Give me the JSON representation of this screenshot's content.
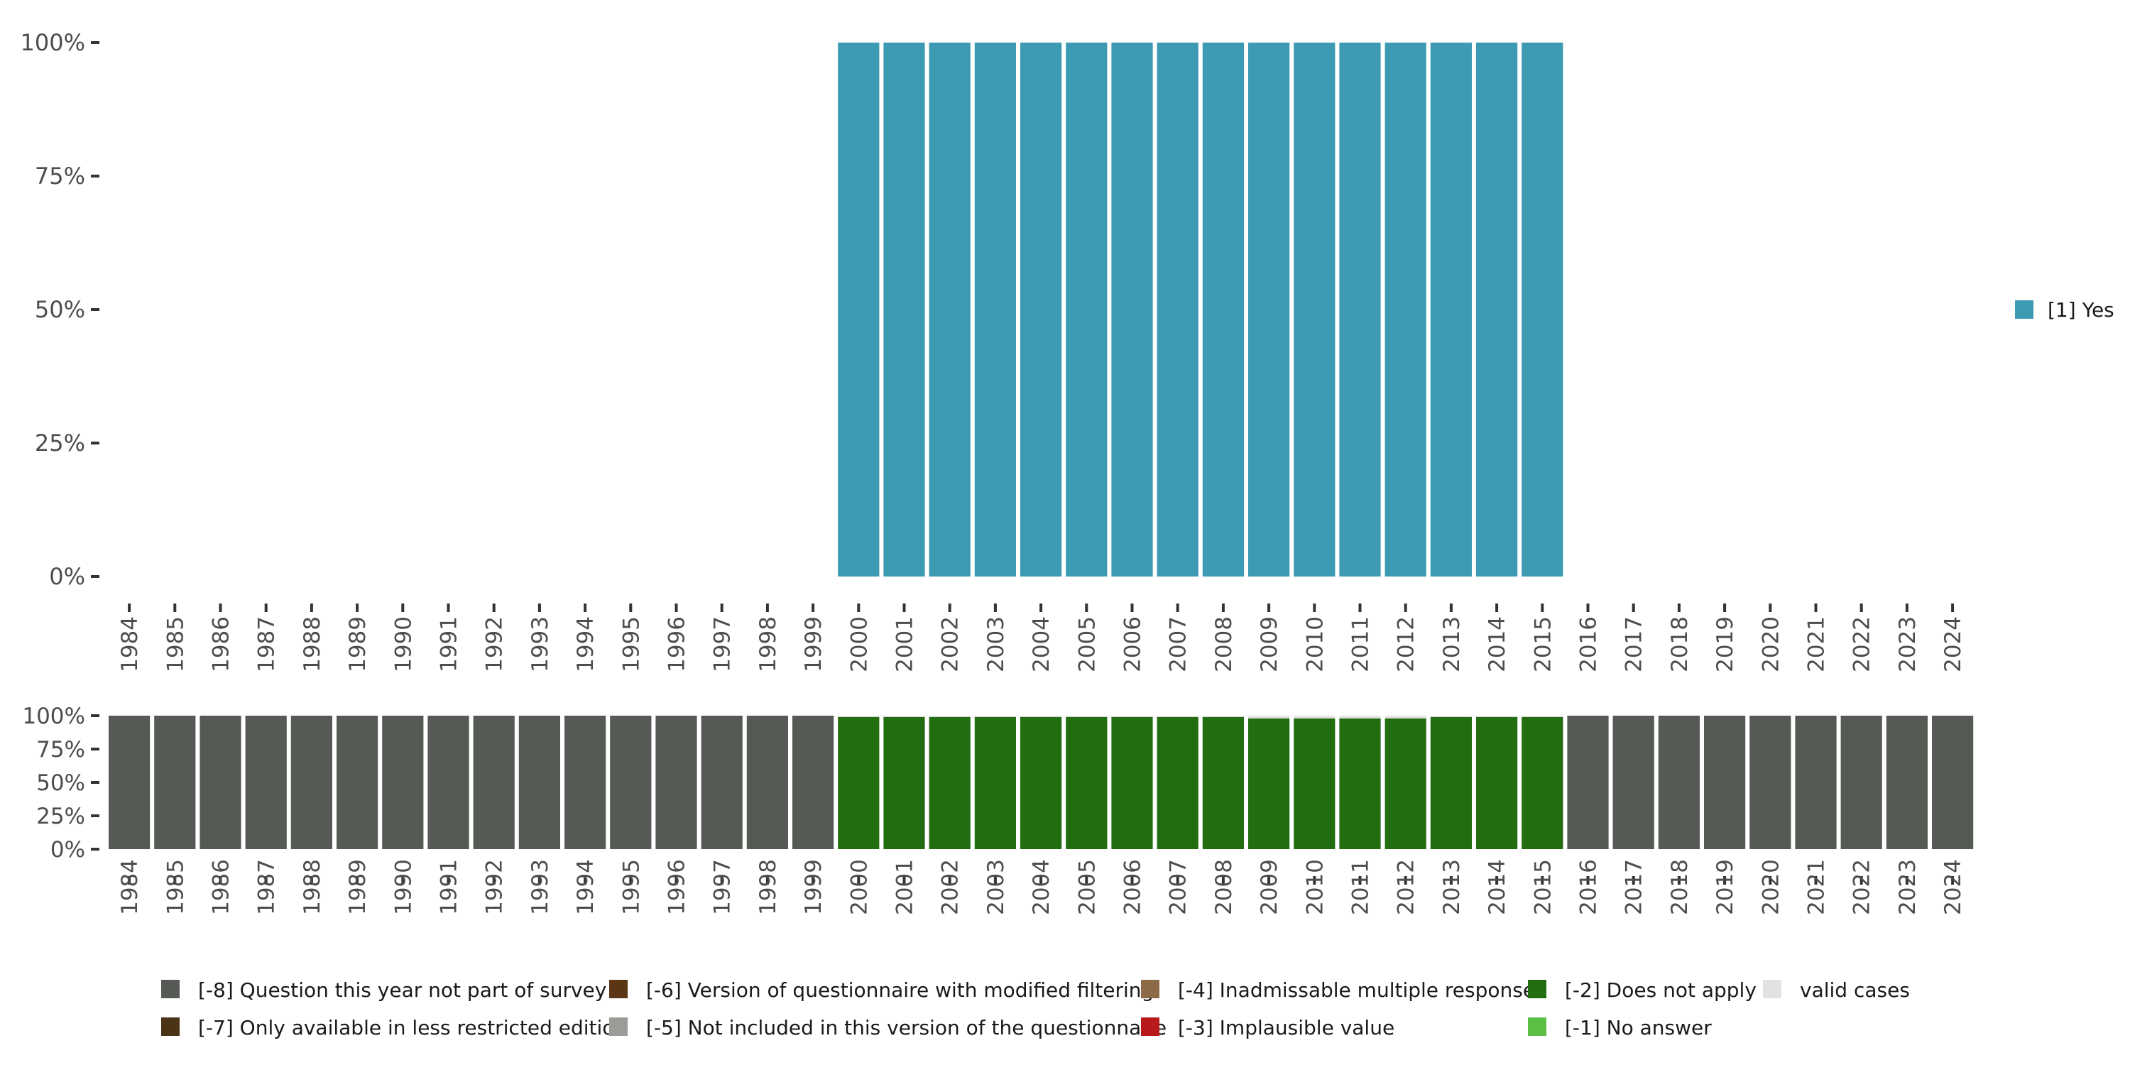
{
  "chart_data": [
    {
      "type": "bar",
      "stacked": true,
      "categories": [
        "1984",
        "1985",
        "1986",
        "1987",
        "1988",
        "1989",
        "1990",
        "1991",
        "1992",
        "1993",
        "1994",
        "1995",
        "1996",
        "1997",
        "1998",
        "1999",
        "2000",
        "2001",
        "2002",
        "2003",
        "2004",
        "2005",
        "2006",
        "2007",
        "2008",
        "2009",
        "2010",
        "2011",
        "2012",
        "2013",
        "2014",
        "2015",
        "2016",
        "2017",
        "2018",
        "2019",
        "2020",
        "2021",
        "2022",
        "2023",
        "2024"
      ],
      "series": [
        {
          "name": "[1] Yes",
          "color": "#3d9ab3",
          "values": [
            0,
            0,
            0,
            0,
            0,
            0,
            0,
            0,
            0,
            0,
            0,
            0,
            0,
            0,
            0,
            0,
            100,
            100,
            100,
            100,
            100,
            100,
            100,
            100,
            100,
            100,
            100,
            100,
            100,
            100,
            100,
            100,
            0,
            0,
            0,
            0,
            0,
            0,
            0,
            0,
            0
          ]
        }
      ],
      "y_ticks": [
        "0%",
        "25%",
        "50%",
        "75%",
        "100%"
      ],
      "ylim": [
        0,
        100
      ],
      "legend": {
        "position": "right",
        "entries": [
          {
            "label": "[1] Yes",
            "color": "#3d9ab3"
          }
        ]
      }
    },
    {
      "type": "bar",
      "stacked": true,
      "categories": [
        "1984",
        "1985",
        "1986",
        "1987",
        "1988",
        "1989",
        "1990",
        "1991",
        "1992",
        "1993",
        "1994",
        "1995",
        "1996",
        "1997",
        "1998",
        "1999",
        "2000",
        "2001",
        "2002",
        "2003",
        "2004",
        "2005",
        "2006",
        "2007",
        "2008",
        "2009",
        "2010",
        "2011",
        "2012",
        "2013",
        "2014",
        "2015",
        "2016",
        "2017",
        "2018",
        "2019",
        "2020",
        "2021",
        "2022",
        "2023",
        "2024"
      ],
      "series": [
        {
          "name": "[-8] Question this year not part of survey",
          "color": "#555a55",
          "values": [
            100,
            100,
            100,
            100,
            100,
            100,
            100,
            100,
            100,
            100,
            100,
            100,
            100,
            100,
            100,
            100,
            0,
            0,
            0,
            0,
            0,
            0,
            0,
            0,
            0,
            0,
            0,
            0,
            0,
            0,
            0,
            0,
            100,
            100,
            100,
            100,
            100,
            100,
            100,
            100,
            100
          ]
        },
        {
          "name": "[-2] Does not apply",
          "color": "#226d10",
          "values": [
            0,
            0,
            0,
            0,
            0,
            0,
            0,
            0,
            0,
            0,
            0,
            0,
            0,
            0,
            0,
            0,
            99,
            99,
            99,
            99,
            99,
            99,
            99,
            99,
            99,
            98,
            98,
            98,
            98,
            99,
            99,
            99,
            0,
            0,
            0,
            0,
            0,
            0,
            0,
            0,
            0
          ]
        },
        {
          "name": "valid cases",
          "color": "#e2e3e1",
          "values": [
            0,
            0,
            0,
            0,
            0,
            0,
            0,
            0,
            0,
            0,
            0,
            0,
            0,
            0,
            0,
            0,
            1,
            1,
            1,
            1,
            1,
            1,
            1,
            1,
            1,
            2,
            2,
            2,
            2,
            1,
            1,
            1,
            0,
            0,
            0,
            0,
            0,
            0,
            0,
            0,
            0
          ]
        }
      ],
      "y_ticks": [
        "0%",
        "25%",
        "50%",
        "75%",
        "100%"
      ],
      "ylim": [
        0,
        100
      ],
      "legend": {
        "position": "bottom",
        "entries": [
          {
            "label": "[-8] Question this year not part of survey",
            "color": "#555a55"
          },
          {
            "label": "[-7] Only available in less restricted edition",
            "color": "#4b3316"
          },
          {
            "label": "[-6] Version of questionnaire with modified filtering",
            "color": "#5b3514"
          },
          {
            "label": "[-5] Not included in this version of the questionnaire",
            "color": "#999c97"
          },
          {
            "label": "[-4] Inadmissable multiple response",
            "color": "#8d6a47"
          },
          {
            "label": "[-3] Implausible value",
            "color": "#b8191b"
          },
          {
            "label": "[-2] Does not apply",
            "color": "#226d10"
          },
          {
            "label": "[-1] No answer",
            "color": "#5cbf45"
          },
          {
            "label": "valid cases",
            "color": "#e2e3e1"
          }
        ]
      }
    }
  ]
}
